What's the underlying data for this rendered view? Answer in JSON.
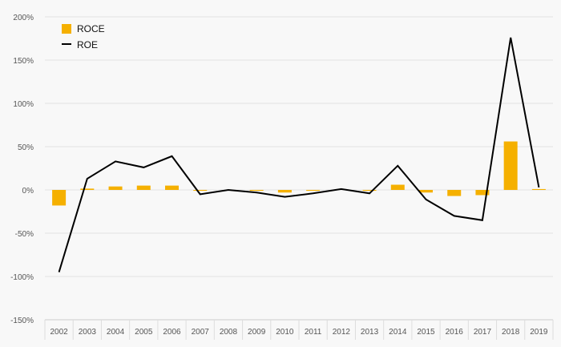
{
  "chart_data": {
    "type": "bar",
    "categories": [
      "2002",
      "2003",
      "2004",
      "2005",
      "2006",
      "2007",
      "2008",
      "2009",
      "2010",
      "2011",
      "2012",
      "2013",
      "2014",
      "2015",
      "2016",
      "2017",
      "2018",
      "2019"
    ],
    "series": [
      {
        "name": "ROCE",
        "kind": "bar",
        "color": "#f5b000",
        "values": [
          -18,
          1.5,
          4,
          5,
          5,
          -1,
          0,
          -1,
          -3,
          -1,
          0,
          -1,
          6,
          -3,
          -7,
          -6,
          56,
          1
        ]
      },
      {
        "name": "ROE",
        "kind": "line",
        "color": "#000000",
        "values": [
          -95,
          13,
          33,
          26,
          39,
          -5,
          0,
          -3,
          -8,
          -4,
          1,
          -4,
          28,
          -11,
          -30,
          -35,
          176,
          3
        ]
      }
    ],
    "y_ticks": [
      "200%",
      "150%",
      "100%",
      "50%",
      "0%",
      "-50%",
      "-100%",
      "-150%"
    ],
    "y_tick_values": [
      200,
      150,
      100,
      50,
      0,
      -50,
      -100,
      -150
    ],
    "ylim": [
      -150,
      200
    ],
    "grid": true,
    "legend_position": "top-left"
  }
}
